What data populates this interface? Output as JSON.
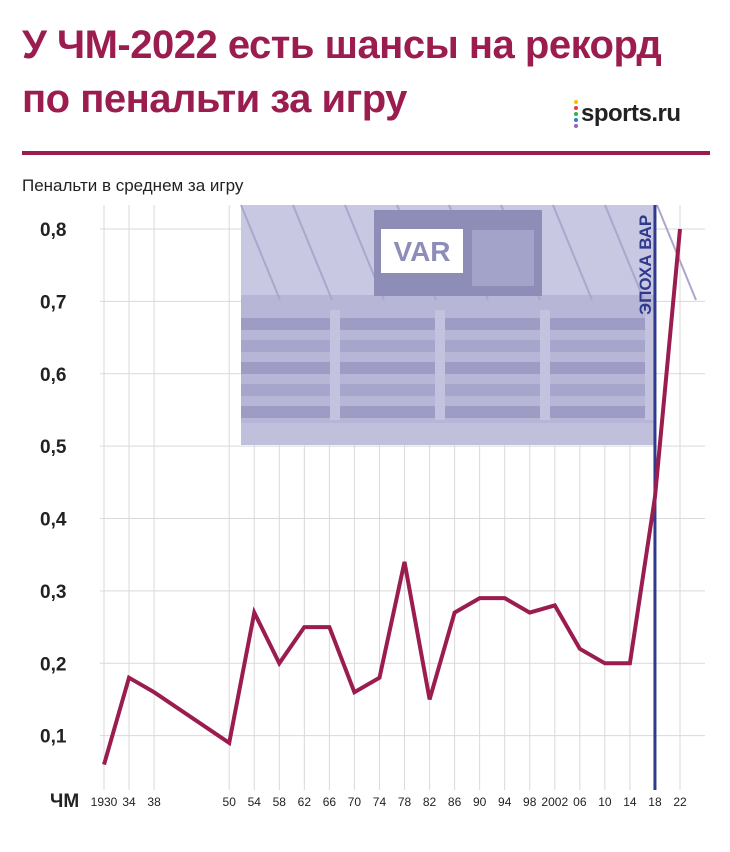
{
  "header": {
    "title_line1": "У ЧМ-2022 есть шансы на рекорд",
    "title_line2": "по пенальти за игру",
    "logo": "sports.ru",
    "logo_dot_colors": [
      "#f2c200",
      "#e8384f",
      "#2fb34a",
      "#2b7fd9",
      "#9b5fc0"
    ]
  },
  "colors": {
    "accent": "#9b1c4f",
    "era_line": "#2f3a8f",
    "grid": "#d9d9d9",
    "photo_tint": "#b7b6d6"
  },
  "photo": {
    "icon": "stadium-var-screen-photo",
    "screen_text": "VAR"
  },
  "chart_data": {
    "type": "line",
    "ylabel": "Пенальти в среднем за игру",
    "xaxis_prefix": "ЧМ",
    "ylim": [
      0,
      0.8
    ],
    "yticks": [
      "0,1",
      "0,2",
      "0,3",
      "0,4",
      "0,5",
      "0,6",
      "0,7",
      "0,8"
    ],
    "ytick_values": [
      0.1,
      0.2,
      0.3,
      0.4,
      0.5,
      0.6,
      0.7,
      0.8
    ],
    "grid": true,
    "x": [
      1930,
      1934,
      1938,
      1950,
      1954,
      1958,
      1962,
      1966,
      1970,
      1974,
      1978,
      1982,
      1986,
      1990,
      1994,
      1998,
      2002,
      2006,
      2010,
      2014,
      2018,
      2022
    ],
    "xtick_labels": [
      "1930",
      "34",
      "38",
      "50",
      "54",
      "58",
      "62",
      "66",
      "70",
      "74",
      "78",
      "82",
      "86",
      "90",
      "94",
      "98",
      "2002",
      "06",
      "10",
      "14",
      "18",
      "22"
    ],
    "series": [
      {
        "values": [
          0.06,
          0.18,
          0.16,
          0.09,
          0.27,
          0.2,
          0.25,
          0.25,
          0.16,
          0.18,
          0.34,
          0.15,
          0.27,
          0.29,
          0.29,
          0.27,
          0.28,
          0.22,
          0.2,
          0.2,
          0.43,
          0.8
        ]
      }
    ],
    "annotation": {
      "label": "ЭПОХА ВАР",
      "x": 2018
    }
  }
}
